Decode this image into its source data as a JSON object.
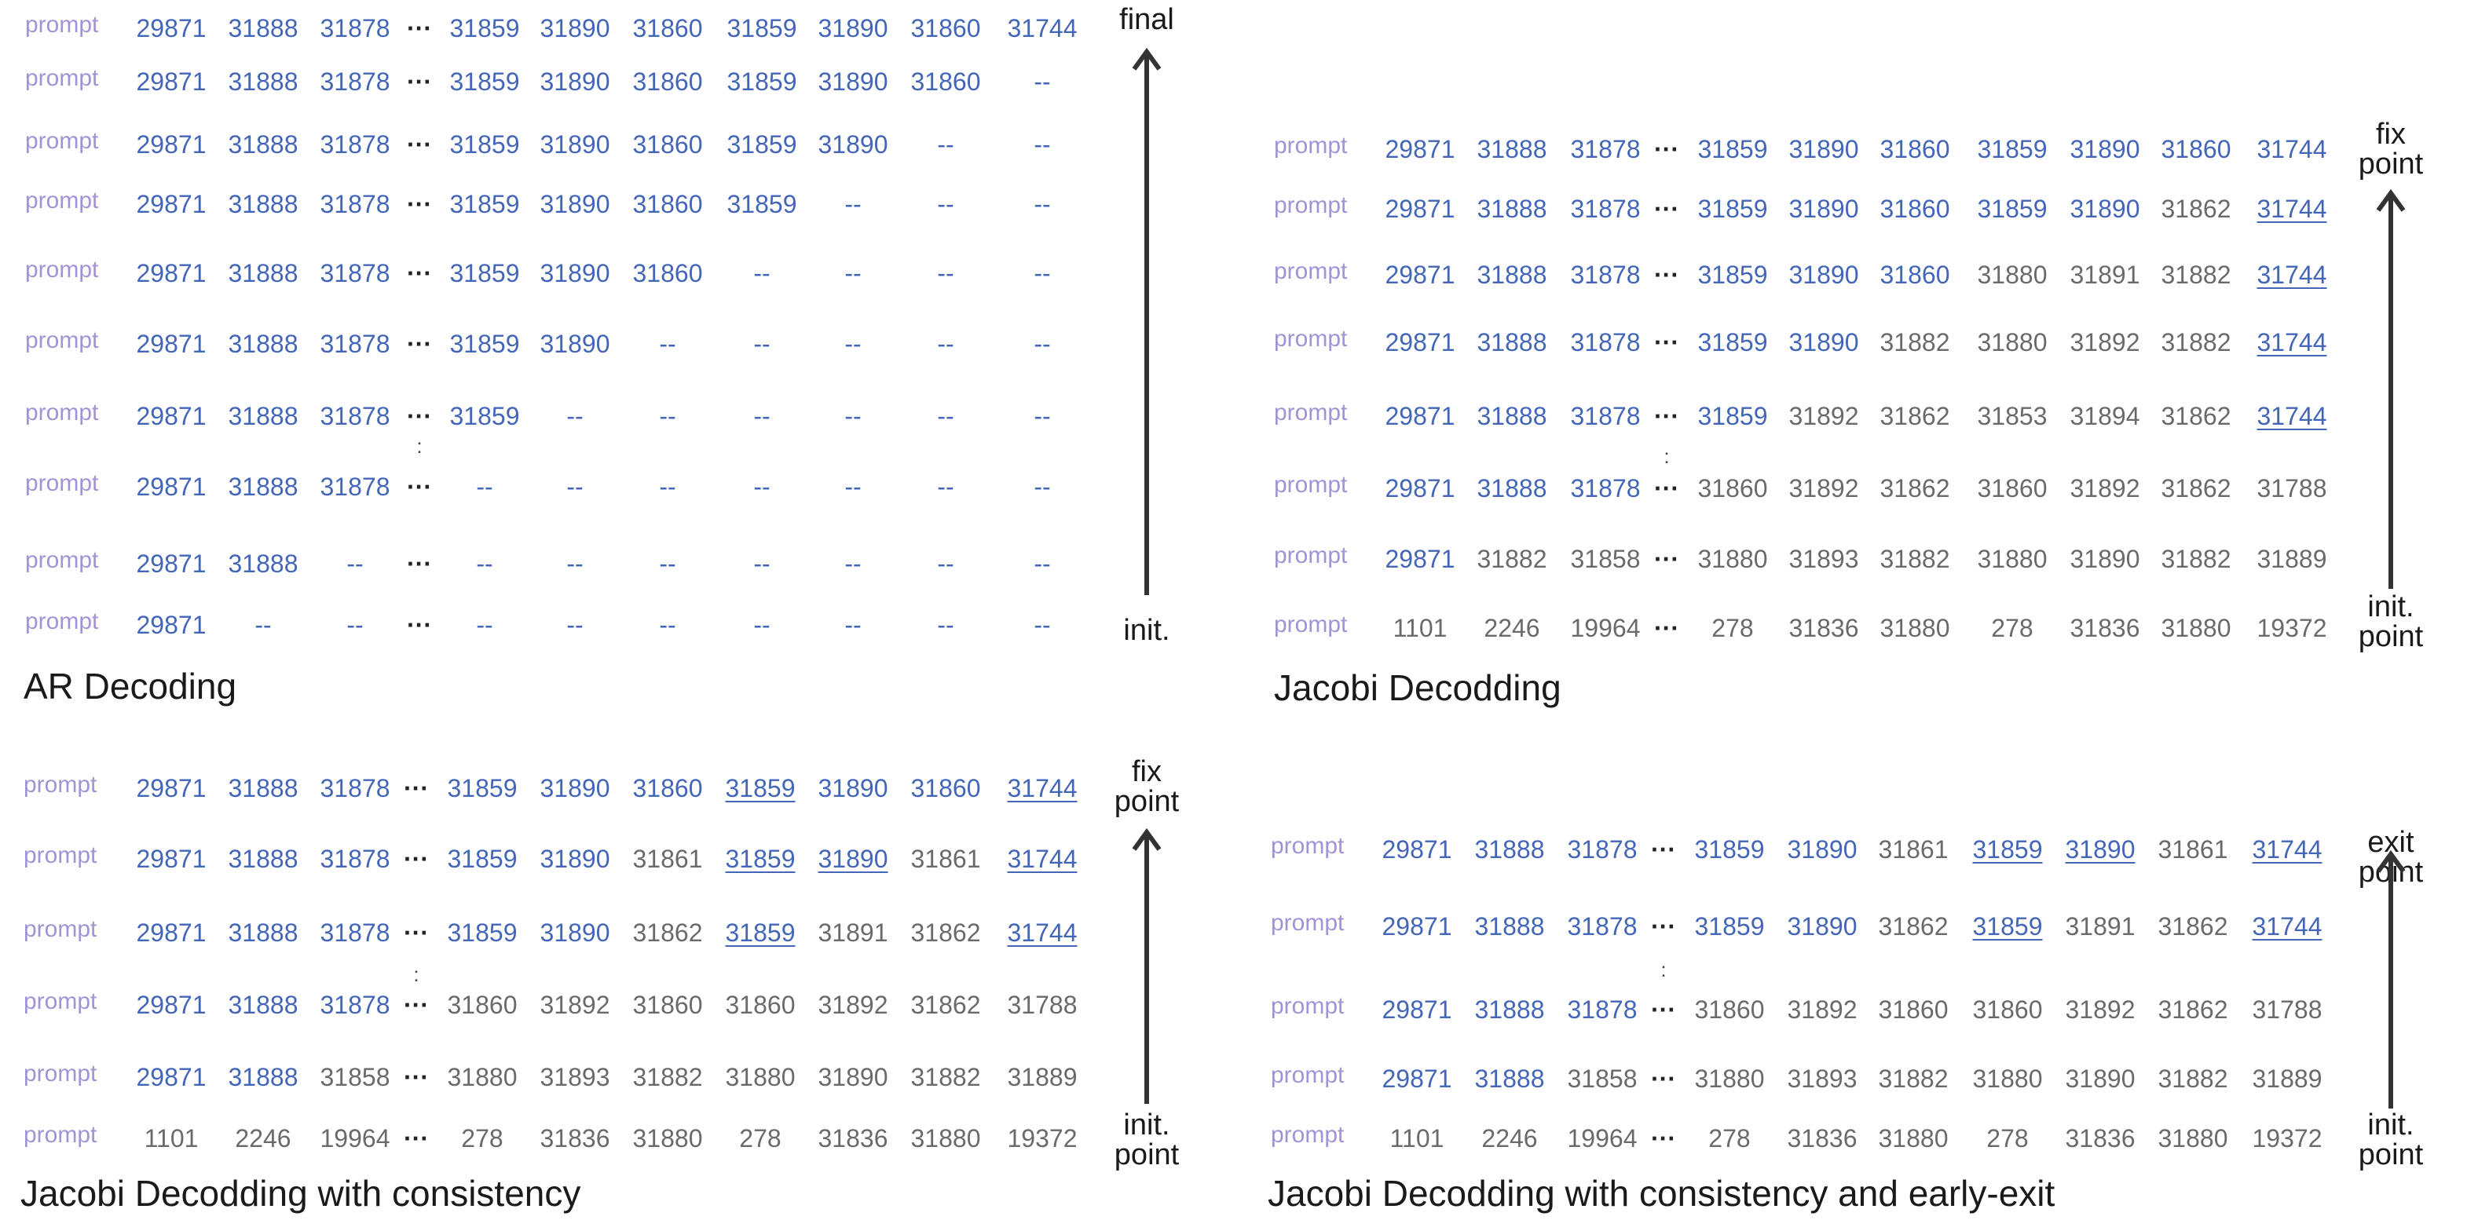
{
  "panels": [
    {
      "title": "AR Decoding",
      "top_label": [
        "final"
      ],
      "bottom_label": [
        "init."
      ],
      "rows": [
        {
          "t": [
            "prompt",
            "29871",
            "31888",
            "31878",
            "···",
            "31859",
            "31890",
            "31860",
            "31859",
            "31890",
            "31860",
            "31744"
          ],
          "s": "pbbbebbbbbbb"
        },
        {
          "t": [
            "prompt",
            "29871",
            "31888",
            "31878",
            "···",
            "31859",
            "31890",
            "31860",
            "31859",
            "31890",
            "31860",
            "--"
          ],
          "s": "pbbbebbbbbbd"
        },
        {
          "t": [
            "prompt",
            "29871",
            "31888",
            "31878",
            "···",
            "31859",
            "31890",
            "31860",
            "31859",
            "31890",
            "--",
            "--"
          ],
          "s": "pbbbebbbbbdd"
        },
        {
          "t": [
            "prompt",
            "29871",
            "31888",
            "31878",
            "···",
            "31859",
            "31890",
            "31860",
            "31859",
            "--",
            "--",
            "--"
          ],
          "s": "pbbbebbbbddd"
        },
        {
          "t": [
            "prompt",
            "29871",
            "31888",
            "31878",
            "···",
            "31859",
            "31890",
            "31860",
            "--",
            "--",
            "--",
            "--"
          ],
          "s": "pbbbebbbdddd"
        },
        {
          "t": [
            "prompt",
            "29871",
            "31888",
            "31878",
            "···",
            "31859",
            "31890",
            "--",
            "--",
            "--",
            "--",
            "--"
          ],
          "s": "pbbbebbddddd"
        },
        {
          "t": [
            "prompt",
            "29871",
            "31888",
            "31878",
            "···",
            "31859",
            "--",
            "--",
            "--",
            "--",
            "--",
            "--"
          ],
          "s": "pbbbebdddddd"
        },
        {
          "t": [
            "prompt",
            "29871",
            "31888",
            "31878",
            "···",
            "--",
            "--",
            "--",
            "--",
            "--",
            "--",
            "--"
          ],
          "s": "pbbbeddddddd"
        },
        {
          "t": [
            "prompt",
            "29871",
            "31888",
            "--",
            "···",
            "--",
            "--",
            "--",
            "--",
            "--",
            "--",
            "--"
          ],
          "s": "pbbdeddddddd"
        },
        {
          "t": [
            "prompt",
            "29871",
            "--",
            "--",
            "···",
            "--",
            "--",
            "--",
            "--",
            "--",
            "--",
            "--"
          ],
          "s": "pbddeddddddd"
        }
      ]
    },
    {
      "title": "Jacobi Decodding",
      "top_label": [
        "fix",
        "point"
      ],
      "bottom_label": [
        "init.",
        "point"
      ],
      "rows": [
        {
          "t": [
            "prompt",
            "29871",
            "31888",
            "31878",
            "···",
            "31859",
            "31890",
            "31860",
            "31859",
            "31890",
            "31860",
            "31744"
          ],
          "s": "pbbbebbbbbbb"
        },
        {
          "t": [
            "prompt",
            "29871",
            "31888",
            "31878",
            "···",
            "31859",
            "31890",
            "31860",
            "31859",
            "31890",
            "31862",
            "31744"
          ],
          "s": "pbbbebbbbbgu"
        },
        {
          "t": [
            "prompt",
            "29871",
            "31888",
            "31878",
            "···",
            "31859",
            "31890",
            "31860",
            "31880",
            "31891",
            "31882",
            "31744"
          ],
          "s": "pbbbebbbgggu"
        },
        {
          "t": [
            "prompt",
            "29871",
            "31888",
            "31878",
            "···",
            "31859",
            "31890",
            "31882",
            "31880",
            "31892",
            "31882",
            "31744"
          ],
          "s": "pbbbebbggggu"
        },
        {
          "t": [
            "prompt",
            "29871",
            "31888",
            "31878",
            "···",
            "31859",
            "31892",
            "31862",
            "31853",
            "31894",
            "31862",
            "31744"
          ],
          "s": "pbbbebgggggu"
        },
        {
          "t": [
            "prompt",
            "29871",
            "31888",
            "31878",
            "···",
            "31860",
            "31892",
            "31862",
            "31860",
            "31892",
            "31862",
            "31788"
          ],
          "s": "pbbbeggggggg"
        },
        {
          "t": [
            "prompt",
            "29871",
            "31882",
            "31858",
            "···",
            "31880",
            "31893",
            "31882",
            "31880",
            "31890",
            "31882",
            "31889"
          ],
          "s": "pbggeggggggg"
        },
        {
          "t": [
            "prompt",
            "1101",
            "2246",
            "19964",
            "···",
            "278",
            "31836",
            "31880",
            "278",
            "31836",
            "31880",
            "19372"
          ],
          "s": "pgggeggggggg"
        }
      ]
    },
    {
      "title": "Jacobi Decodding with consistency",
      "top_label": [
        "fix",
        "point"
      ],
      "bottom_label": [
        "init.",
        "point"
      ],
      "rows": [
        {
          "t": [
            "prompt",
            "29871",
            "31888",
            "31878",
            "···",
            "31859",
            "31890",
            "31860",
            "31859",
            "31890",
            "31860",
            "31744"
          ],
          "s": "pbbbebbbubbu"
        },
        {
          "t": [
            "prompt",
            "29871",
            "31888",
            "31878",
            "···",
            "31859",
            "31890",
            "31861",
            "31859",
            "31890",
            "31861",
            "31744"
          ],
          "s": "pbbbebbguugu"
        },
        {
          "t": [
            "prompt",
            "29871",
            "31888",
            "31878",
            "···",
            "31859",
            "31890",
            "31862",
            "31859",
            "31891",
            "31862",
            "31744"
          ],
          "s": "pbbbebbguggu"
        },
        {
          "t": [
            "prompt",
            "29871",
            "31888",
            "31878",
            "···",
            "31860",
            "31892",
            "31860",
            "31860",
            "31892",
            "31862",
            "31788"
          ],
          "s": "pbbbeggggggg"
        },
        {
          "t": [
            "prompt",
            "29871",
            "31888",
            "31858",
            "···",
            "31880",
            "31893",
            "31882",
            "31880",
            "31890",
            "31882",
            "31889"
          ],
          "s": "pbbgeggggggg"
        },
        {
          "t": [
            "prompt",
            "1101",
            "2246",
            "19964",
            "···",
            "278",
            "31836",
            "31880",
            "278",
            "31836",
            "31880",
            "19372"
          ],
          "s": "pgggeggggggg"
        }
      ]
    },
    {
      "title": "Jacobi Decodding with consistency and early-exit",
      "top_label": [
        "exit",
        "point"
      ],
      "bottom_label": [
        "init.",
        "point"
      ],
      "rows": [
        {
          "t": [
            "prompt",
            "29871",
            "31888",
            "31878",
            "···",
            "31859",
            "31890",
            "31861",
            "31859",
            "31890",
            "31861",
            "31744"
          ],
          "s": "pbbbebbguugu"
        },
        {
          "t": [
            "prompt",
            "29871",
            "31888",
            "31878",
            "···",
            "31859",
            "31890",
            "31862",
            "31859",
            "31891",
            "31862",
            "31744"
          ],
          "s": "pbbbebbguggu"
        },
        {
          "t": [
            "prompt",
            "29871",
            "31888",
            "31878",
            "···",
            "31860",
            "31892",
            "31860",
            "31860",
            "31892",
            "31862",
            "31788"
          ],
          "s": "pbbbeggggggg"
        },
        {
          "t": [
            "prompt",
            "29871",
            "31888",
            "31858",
            "···",
            "31880",
            "31893",
            "31882",
            "31880",
            "31890",
            "31882",
            "31889"
          ],
          "s": "pbbgeggggggg"
        },
        {
          "t": [
            "prompt",
            "1101",
            "2246",
            "19964",
            "···",
            "278",
            "31836",
            "31880",
            "278",
            "31836",
            "31880",
            "19372"
          ],
          "s": "pgggeggggggg"
        }
      ]
    }
  ]
}
